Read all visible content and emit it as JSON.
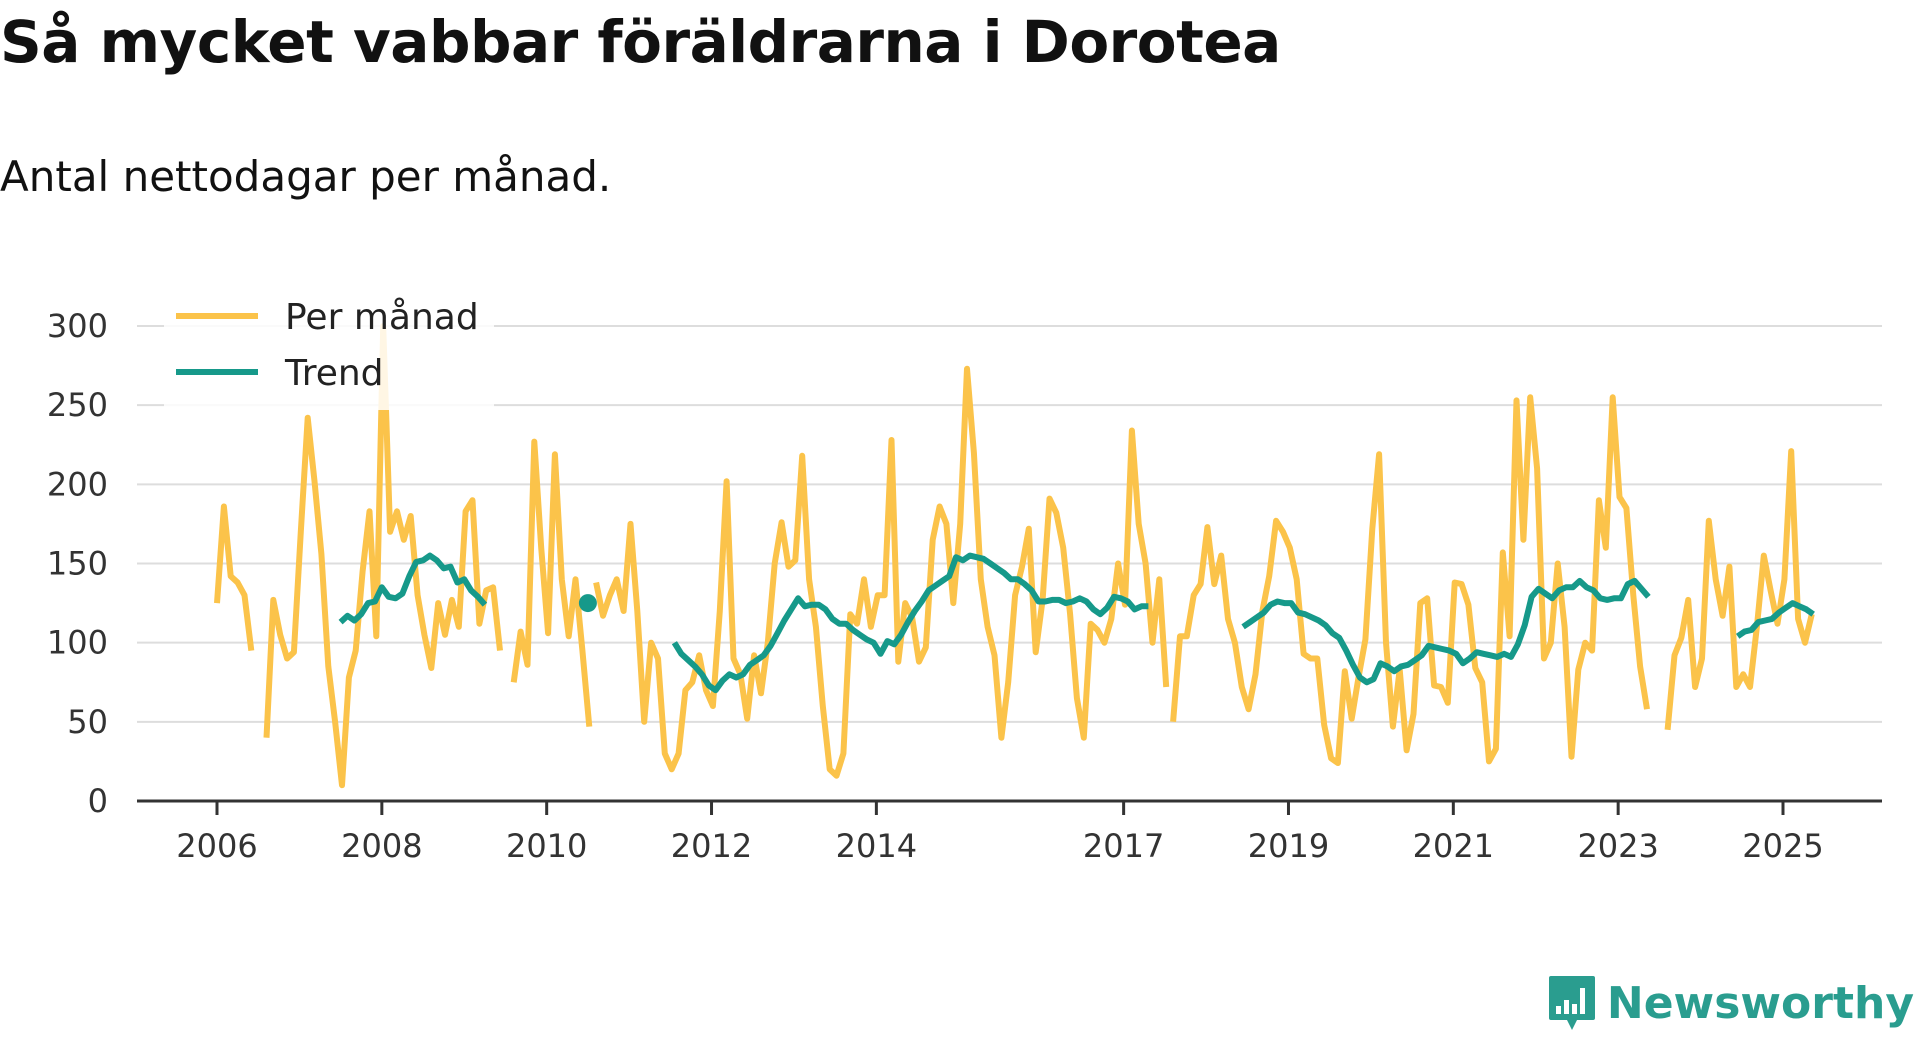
{
  "colors": {
    "monthly": "#fbc34a",
    "trend": "#16998a",
    "grid": "#dddddd",
    "axis": "#333333",
    "brand": "#2a9d8f"
  },
  "brand": {
    "name": "Newsworthy",
    "icon": "bar-chart-icon"
  },
  "chart_data": {
    "type": "line",
    "title": "Så mycket vabbar föräldrarna i Dorotea",
    "subtitle": "Antal nettodagar per månad.",
    "xlabel": "",
    "ylabel": "",
    "ylim": [
      0,
      300
    ],
    "yticks": [
      0,
      50,
      100,
      150,
      200,
      250,
      300
    ],
    "ytick_labels": [
      "0",
      "50",
      "100",
      "150",
      "200",
      "250",
      "300"
    ],
    "xticks": [
      2006,
      2008,
      2010,
      2012,
      2014,
      2017,
      2019,
      2021,
      2023,
      2025
    ],
    "xtick_labels": [
      "2006",
      "2008",
      "2010",
      "2012",
      "2014",
      "2017",
      "2019",
      "2021",
      "2023",
      "2025"
    ],
    "x_tick_positions_years": [
      2006.0,
      2008.0,
      2010.0,
      2012.0,
      2014.0,
      2017.0,
      2019.0,
      2021.0,
      2023.0,
      2025.0
    ],
    "xlim_years": [
      2005.0,
      2026.3
    ],
    "grid": true,
    "legend_position": "top-left",
    "series": [
      {
        "name": "Per månad",
        "segments": [
          {
            "start": 2006.0,
            "values": [
              125,
              186,
              142,
              138,
              130,
              95
            ]
          },
          {
            "start": 2006.6,
            "values": [
              40,
              127,
              105,
              90,
              94,
              170,
              242,
              202,
              156,
              85,
              50,
              10,
              78,
              95,
              145,
              183,
              104,
              300,
              170,
              183,
              165,
              180,
              130,
              105,
              84,
              125,
              105,
              127,
              110,
              183,
              190,
              112,
              133,
              135,
              95
            ]
          },
          {
            "start": 2009.6,
            "values": [
              75,
              107,
              86,
              227,
              160,
              106,
              219,
              140,
              104,
              140,
              95,
              47
            ]
          },
          {
            "start": 2010.6,
            "values": [
              138,
              117,
              130,
              140,
              120,
              175,
              120,
              50,
              100,
              90,
              30,
              20,
              30,
              70,
              75,
              92,
              70,
              60,
              120,
              202,
              90,
              80,
              52,
              92,
              68,
              100,
              150,
              176,
              148,
              152,
              218,
              140,
              110,
              60,
              20,
              16,
              30,
              118,
              112,
              140,
              110,
              130,
              130,
              228,
              88,
              125,
              116,
              88,
              97,
              165,
              186,
              175,
              125,
              175,
              273,
              220,
              140,
              110,
              92,
              40,
              75,
              130,
              148,
              172,
              94,
              127,
              191,
              182,
              160,
              118,
              65,
              40,
              112,
              108,
              100,
              115,
              150,
              124,
              234,
              175,
              150,
              100,
              140,
              72
            ]
          },
          {
            "start": 2017.6,
            "values": [
              50,
              104,
              104,
              130,
              137,
              173,
              137,
              155,
              115,
              100,
              72,
              58,
              80,
              120,
              142,
              177,
              170,
              160,
              140,
              93,
              90,
              90,
              48,
              27,
              24,
              82,
              52,
              78,
              102,
              172,
              219,
              100,
              47,
              83,
              32,
              55,
              125,
              128,
              73,
              72,
              62,
              138,
              137,
              124,
              84,
              75,
              25,
              33,
              157,
              104,
              253,
              165,
              255,
              210,
              90,
              100,
              150,
              110,
              28,
              83,
              100,
              95,
              190,
              160,
              255,
              192,
              185,
              130,
              85,
              58
            ]
          },
          {
            "start": 2023.6,
            "values": [
              45,
              92,
              103,
              127,
              72,
              90,
              177,
              140,
              117,
              148,
              72,
              80,
              72,
              110,
              155,
              133,
              112,
              140,
              221,
              115,
              100,
              118
            ]
          }
        ]
      },
      {
        "name": "Trend",
        "segments": [
          {
            "start": 2007.5,
            "values": [
              113,
              117,
              114,
              118,
              125,
              126,
              135,
              129,
              128,
              131,
              142,
              151,
              152,
              155,
              152,
              147,
              148,
              138,
              140,
              133,
              129,
              124
            ]
          },
          {
            "start": 2010.5,
            "values": [
              125
            ]
          },
          {
            "start": 2011.55,
            "values": [
              100,
              93,
              89,
              85,
              80,
              73,
              70,
              76,
              80,
              78,
              80,
              86,
              89,
              92,
              98,
              106,
              114,
              121,
              128,
              123,
              124,
              124,
              121,
              115,
              112,
              112,
              108,
              105,
              102,
              100,
              93,
              101,
              99,
              105,
              113,
              120,
              126,
              133,
              136,
              139,
              142,
              154,
              152,
              155,
              154,
              153,
              150,
              147,
              144,
              140,
              140,
              137,
              133,
              126,
              126,
              127,
              127,
              125,
              126,
              128,
              126,
              121,
              118,
              122,
              129,
              128,
              126,
              121,
              123,
              123
            ]
          },
          {
            "start": 2018.45,
            "values": [
              110,
              113,
              116,
              119,
              124,
              126,
              125,
              125,
              119,
              118,
              116,
              114,
              111,
              106,
              103,
              95,
              86,
              78,
              75,
              77,
              87,
              85,
              82,
              85,
              86,
              89,
              92,
              98,
              97,
              96,
              95,
              93,
              87,
              90,
              94,
              93,
              92,
              91,
              93,
              91,
              99,
              111,
              129,
              134,
              131,
              128,
              133,
              135,
              135,
              139,
              135,
              133,
              128,
              127,
              128,
              128,
              137,
              139,
              134,
              129
            ]
          },
          {
            "start": 2024.45,
            "values": [
              104,
              107,
              108,
              113,
              114,
              115,
              119,
              122,
              125,
              123,
              121,
              118
            ]
          }
        ]
      }
    ]
  }
}
